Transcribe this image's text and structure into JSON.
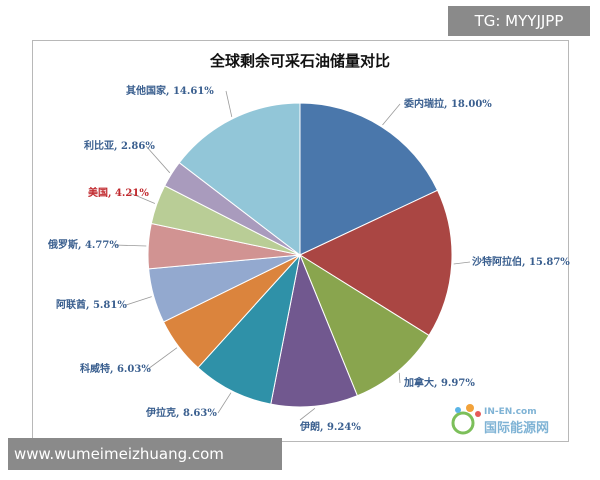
{
  "watermarks": {
    "top": "TG: MYYJJPP",
    "bottom": "www.wumeimeizhuang.com"
  },
  "logo": {
    "line1": "IN-EN.com",
    "line2": "国际能源网"
  },
  "chart_data": {
    "type": "pie",
    "title": "全球剩余可采石油储量对比",
    "start_angle": "12 o'clock, clockwise",
    "slices": [
      {
        "name": "委内瑞拉",
        "value": 18.0,
        "label": "委内瑞拉, 18.00%",
        "color": "#4a77ab",
        "label_color": "#3a5f8f"
      },
      {
        "name": "沙特阿拉伯",
        "value": 15.87,
        "label": "沙特阿拉伯, 15.87%",
        "color": "#aa4643",
        "label_color": "#3a5f8f"
      },
      {
        "name": "加拿大",
        "value": 9.97,
        "label": "加拿大, 9.97%",
        "color": "#89a54e",
        "label_color": "#3a5f8f"
      },
      {
        "name": "伊朗",
        "value": 9.24,
        "label": "伊朗, 9.24%",
        "color": "#71588f",
        "label_color": "#3a5f8f"
      },
      {
        "name": "伊拉克",
        "value": 8.63,
        "label": "伊拉克, 8.63%",
        "color": "#2f91a8",
        "label_color": "#3a5f8f"
      },
      {
        "name": "科威特",
        "value": 6.03,
        "label": "科威特, 6.03%",
        "color": "#db843d",
        "label_color": "#3a5f8f"
      },
      {
        "name": "阿联酋",
        "value": 5.81,
        "label": "阿联酋, 5.81%",
        "color": "#93a9cf",
        "label_color": "#3a5f8f"
      },
      {
        "name": "俄罗斯",
        "value": 4.77,
        "label": "俄罗斯, 4.77%",
        "color": "#d19392",
        "label_color": "#3a5f8f"
      },
      {
        "name": "美国",
        "value": 4.21,
        "label": "美国, 4.21%",
        "color": "#b9cd96",
        "label_color": "#c0282d"
      },
      {
        "name": "利比亚",
        "value": 2.86,
        "label": "利比亚, 2.86%",
        "color": "#a99bbd",
        "label_color": "#3a5f8f"
      },
      {
        "name": "其他国家",
        "value": 14.61,
        "label": "其他国家, 14.61%",
        "color": "#92c6d8",
        "label_color": "#3a5f8f"
      }
    ]
  }
}
